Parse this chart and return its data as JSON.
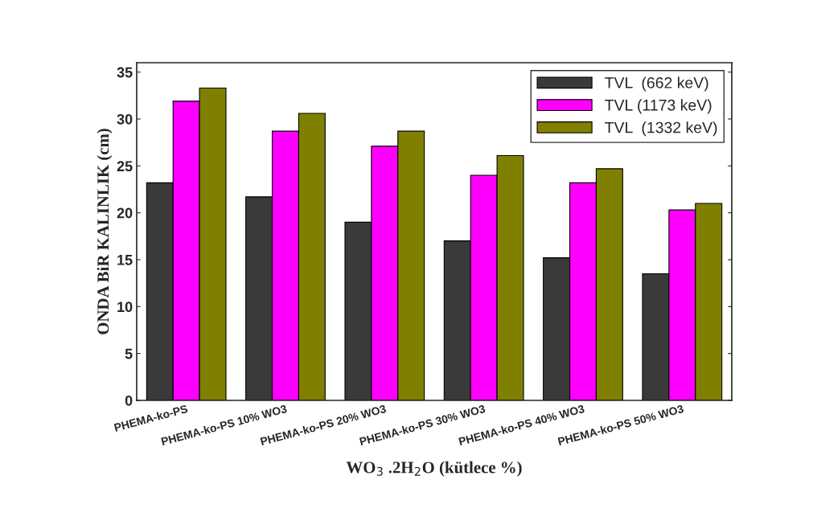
{
  "chart_data": {
    "type": "bar",
    "xlabel": "WO$_{3}$ .2H$_{2}$O (kütlece %)",
    "ylabel": "ONDA BiR KALINLIK (cm)",
    "categories": [
      "PHEMA-ko-PS",
      "PHEMA-ko-PS 10% WO3",
      "PHEMA-ko-PS 20% WO3",
      "PHEMA-ko-PS 30% WO3",
      "PHEMA-ko-PS 40% WO3",
      "PHEMA-ko-PS 50% WO3"
    ],
    "series": [
      {
        "name": "TVL  (662 keV)",
        "color": "#3a3a3a",
        "values": [
          23.2,
          21.7,
          19.0,
          17.0,
          15.2,
          13.5
        ]
      },
      {
        "name": "TVL (1173 keV)",
        "color": "#ff00ff",
        "values": [
          31.9,
          28.7,
          27.1,
          24.0,
          23.2,
          20.3
        ]
      },
      {
        "name": "TVL  (1332 keV)",
        "color": "#808000",
        "values": [
          33.3,
          30.6,
          28.7,
          26.1,
          24.7,
          21.0
        ]
      }
    ],
    "ylim": [
      0,
      36
    ],
    "yticks": [
      0,
      5,
      10,
      15,
      20,
      25,
      30,
      35
    ],
    "grid": false,
    "legend": "top right"
  }
}
